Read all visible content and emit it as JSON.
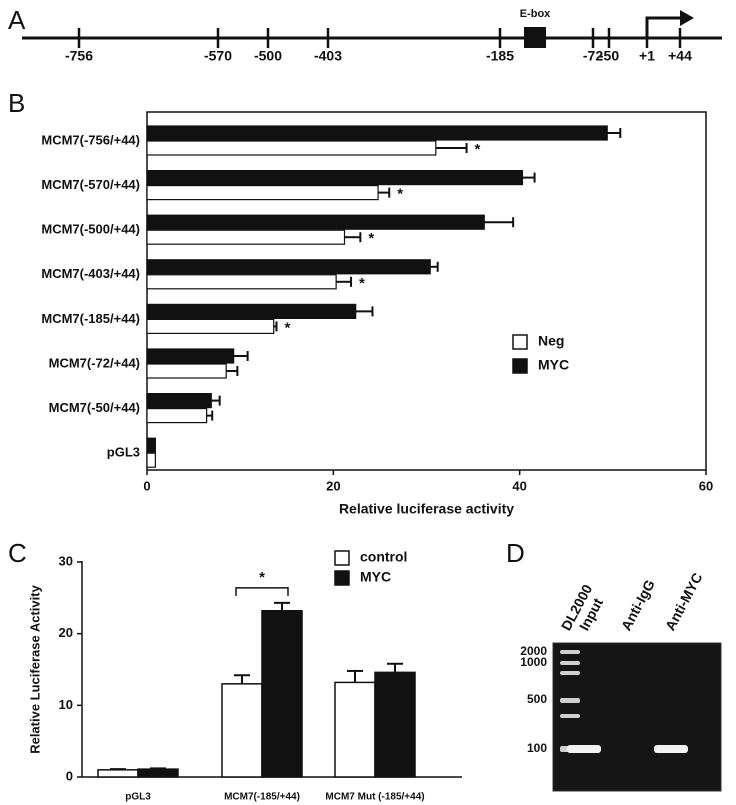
{
  "panel_labels": [
    "A",
    "B",
    "C",
    "D"
  ],
  "promoter": {
    "positions": [
      "-756",
      "-570",
      "-500",
      "-403",
      "-185",
      "-72",
      "-50",
      "+1",
      "+44"
    ],
    "element": "E-box"
  },
  "chart_data": [
    {
      "type": "bar",
      "orientation": "horizontal",
      "categories": [
        "MCM7(-756/+44)",
        "MCM7(-570/+44)",
        "MCM7(-500/+44)",
        "MCM7(-403/+44)",
        "MCM7(-185/+44)",
        "MCM7(-72/+44)",
        "MCM7(-50/+44)",
        "pGL3"
      ],
      "series": [
        {
          "name": "MYC",
          "color": "#111111",
          "values": [
            49.4,
            40.3,
            36.2,
            30.4,
            22.4,
            9.3,
            6.9,
            0.9
          ],
          "errors": [
            1.4,
            1.3,
            3.1,
            0.8,
            1.8,
            1.5,
            0.9,
            null
          ]
        },
        {
          "name": "Neg",
          "color": "#ffffff",
          "values": [
            31.0,
            24.8,
            21.2,
            20.3,
            13.6,
            8.5,
            6.4,
            0.9
          ],
          "errors": [
            3.3,
            1.2,
            1.7,
            1.6,
            0.3,
            1.2,
            0.6,
            null
          ],
          "annotations": [
            "*",
            "*",
            "*",
            "*",
            "*",
            null,
            null,
            null
          ]
        }
      ],
      "xlim": [
        0,
        60
      ],
      "xticks": [
        0,
        20,
        40,
        60
      ],
      "xlabel": "Relative luciferase activity",
      "legend": "right"
    },
    {
      "type": "bar",
      "orientation": "vertical",
      "categories": [
        "pGL3",
        "MCM7(-185/+44)",
        "MCM7 Mut (-185/+44)"
      ],
      "series": [
        {
          "name": "control",
          "color": "#ffffff",
          "values": [
            1.0,
            13.0,
            13.2
          ],
          "errors": [
            0.1,
            1.2,
            1.6
          ]
        },
        {
          "name": "MYC",
          "color": "#111111",
          "values": [
            1.1,
            23.2,
            14.6
          ],
          "errors": [
            0.1,
            1.1,
            1.2
          ]
        }
      ],
      "significance": [
        null,
        "*",
        null
      ],
      "ylim": [
        0,
        30
      ],
      "yticks": [
        0,
        10,
        20,
        30
      ],
      "ylabel": "Relative Luciferase Activity",
      "legend": "top"
    }
  ],
  "gel": {
    "lanes": [
      "DL2000",
      "Input",
      "Anti-IgG",
      "Anti-MYC"
    ],
    "markers": [
      2000,
      1000,
      500,
      100
    ]
  }
}
